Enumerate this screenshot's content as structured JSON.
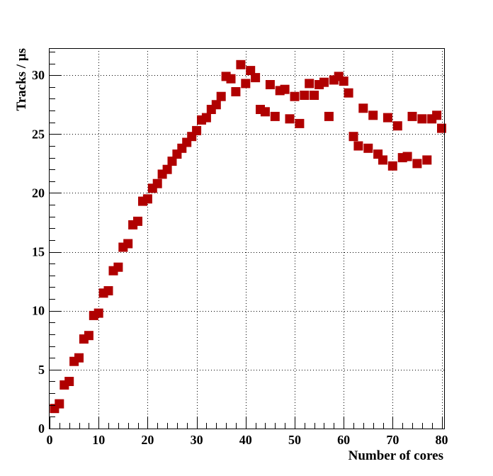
{
  "chart_data": {
    "type": "scatter",
    "title": "",
    "xlabel": "Number of cores",
    "ylabel": "Tracks / μs",
    "xlim": [
      0,
      80.5
    ],
    "ylim": [
      0,
      32.3
    ],
    "x_ticks": [
      0,
      10,
      20,
      30,
      40,
      50,
      60,
      70,
      80
    ],
    "y_ticks": [
      0,
      5,
      10,
      15,
      20,
      25,
      30
    ],
    "grid": true,
    "legend": "none",
    "marker": "square",
    "marker_color": "#b00000",
    "series": [
      {
        "points": [
          [
            1,
            1.7
          ],
          [
            2,
            2.1
          ],
          [
            3,
            3.7
          ],
          [
            4,
            4.0
          ],
          [
            5,
            5.7
          ],
          [
            6,
            6.0
          ],
          [
            7,
            7.6
          ],
          [
            8,
            7.9
          ],
          [
            9,
            9.6
          ],
          [
            10,
            9.8
          ],
          [
            11,
            11.5
          ],
          [
            12,
            11.7
          ],
          [
            13,
            13.4
          ],
          [
            14,
            13.7
          ],
          [
            15,
            15.4
          ],
          [
            16,
            15.7
          ],
          [
            17,
            17.3
          ],
          [
            18,
            17.6
          ],
          [
            19,
            19.3
          ],
          [
            20,
            19.5
          ],
          [
            21,
            20.4
          ],
          [
            22,
            20.8
          ],
          [
            23,
            21.6
          ],
          [
            24,
            22.0
          ],
          [
            25,
            22.7
          ],
          [
            26,
            23.3
          ],
          [
            27,
            23.8
          ],
          [
            28,
            24.3
          ],
          [
            29,
            24.8
          ],
          [
            30,
            25.3
          ],
          [
            31,
            26.2
          ],
          [
            32,
            26.4
          ],
          [
            33,
            27.1
          ],
          [
            34,
            27.5
          ],
          [
            35,
            28.2
          ],
          [
            36,
            29.9
          ],
          [
            37,
            29.7
          ],
          [
            38,
            28.6
          ],
          [
            39,
            30.9
          ],
          [
            40,
            29.3
          ],
          [
            41,
            30.4
          ],
          [
            42,
            29.8
          ],
          [
            43,
            27.1
          ],
          [
            44,
            26.9
          ],
          [
            45,
            29.2
          ],
          [
            46,
            26.5
          ],
          [
            47,
            28.7
          ],
          [
            48,
            28.8
          ],
          [
            49,
            26.3
          ],
          [
            50,
            28.2
          ],
          [
            51,
            25.9
          ],
          [
            52,
            28.3
          ],
          [
            53,
            29.3
          ],
          [
            54,
            28.3
          ],
          [
            55,
            29.2
          ],
          [
            56,
            29.4
          ],
          [
            57,
            26.5
          ],
          [
            58,
            29.6
          ],
          [
            59,
            29.9
          ],
          [
            60,
            29.5
          ],
          [
            61,
            28.5
          ],
          [
            62,
            24.8
          ],
          [
            63,
            24.0
          ],
          [
            64,
            27.2
          ],
          [
            65,
            23.8
          ],
          [
            66,
            26.6
          ],
          [
            67,
            23.3
          ],
          [
            68,
            22.8
          ],
          [
            69,
            26.4
          ],
          [
            70,
            22.3
          ],
          [
            71,
            25.7
          ],
          [
            72,
            23.0
          ],
          [
            73,
            23.1
          ],
          [
            74,
            26.5
          ],
          [
            75,
            22.5
          ],
          [
            76,
            26.3
          ],
          [
            77,
            22.8
          ],
          [
            78,
            26.3
          ],
          [
            79,
            26.6
          ],
          [
            80,
            25.5
          ]
        ]
      }
    ]
  }
}
